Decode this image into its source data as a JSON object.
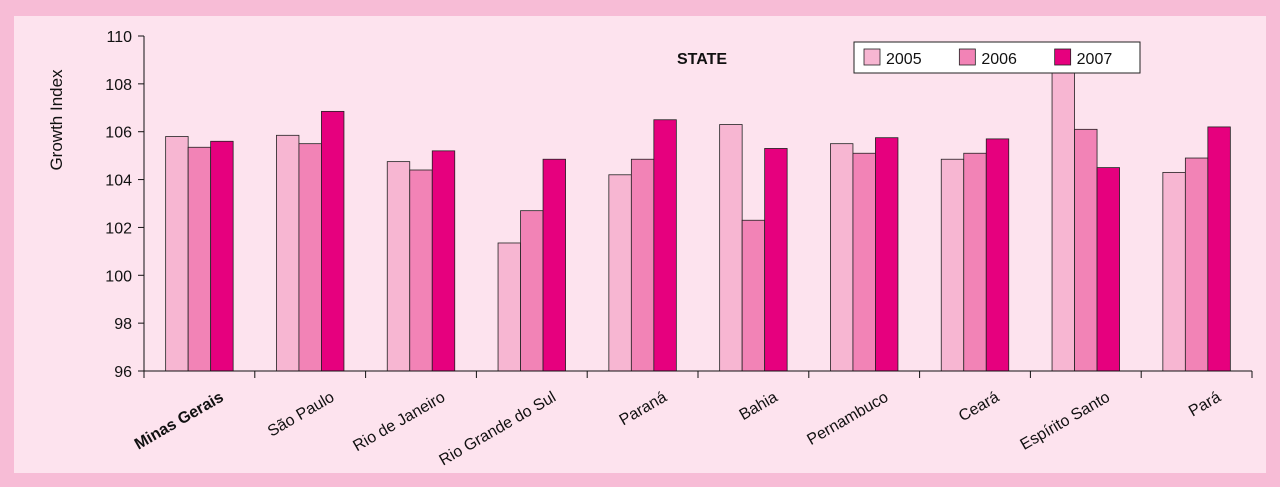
{
  "chart_data": {
    "type": "bar",
    "title": "STATE",
    "ylabel": "Growth Index",
    "xlabel": "",
    "ylim": [
      96,
      110
    ],
    "yticks": [
      96,
      98,
      100,
      102,
      104,
      106,
      108,
      110
    ],
    "categories": [
      "Minas Gerais",
      "São Paulo",
      "Rio de Janeiro",
      "Rio Grande do Sul",
      "Paraná",
      "Bahia",
      "Pernambuco",
      "Ceará",
      "Espírito Santo",
      "Pará"
    ],
    "highlight_category": "Minas Gerais",
    "legend_position": "top-right",
    "grid": false,
    "series": [
      {
        "name": "2005",
        "color": "#f7b6d2",
        "values": [
          105.8,
          105.85,
          104.75,
          101.35,
          104.2,
          106.3,
          105.5,
          104.85,
          108.55,
          104.3
        ]
      },
      {
        "name": "2006",
        "color": "#f283b6",
        "values": [
          105.35,
          105.5,
          104.4,
          102.7,
          104.85,
          102.3,
          105.1,
          105.1,
          106.1,
          104.9
        ]
      },
      {
        "name": "2007",
        "color": "#e6007e",
        "values": [
          105.6,
          106.85,
          105.2,
          104.85,
          106.5,
          105.3,
          105.75,
          105.7,
          104.5,
          106.2
        ]
      }
    ]
  }
}
